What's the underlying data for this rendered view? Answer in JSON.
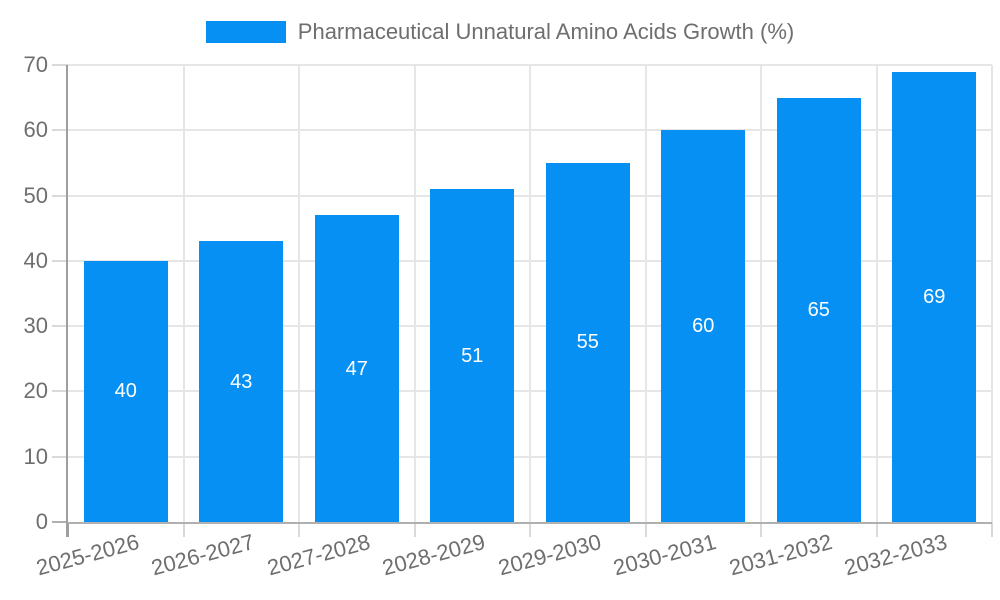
{
  "chart_data": {
    "type": "bar",
    "title": "Pharmaceutical Unnatural Amino Acids Growth (%)",
    "categories": [
      "2025-2026",
      "2026-2027",
      "2027-2028",
      "2028-2029",
      "2029-2030",
      "2030-2031",
      "2031-2032",
      "2032-2033"
    ],
    "values": [
      40,
      43,
      47,
      51,
      55,
      60,
      65,
      69
    ],
    "bar_value_labels": [
      "40",
      "43",
      "47",
      "51",
      "55",
      "60",
      "65",
      "69"
    ],
    "xlabel": "",
    "ylabel": "",
    "ylim": [
      0,
      70
    ],
    "yticks": [
      0,
      10,
      20,
      30,
      40,
      50,
      60,
      70
    ],
    "grid": true,
    "legend_position": "top",
    "colors": {
      "bar": "#0790f3",
      "bar_label": "#ffffff",
      "gridline": "#e6e6e6",
      "outer_tick": "#d9d9d9",
      "axis_line": "#9e9e9e",
      "baseline": "#b0b0b0",
      "tick_label": "#6e6e6e",
      "legend_text": "#6e6e6e",
      "background": "#ffffff"
    }
  }
}
